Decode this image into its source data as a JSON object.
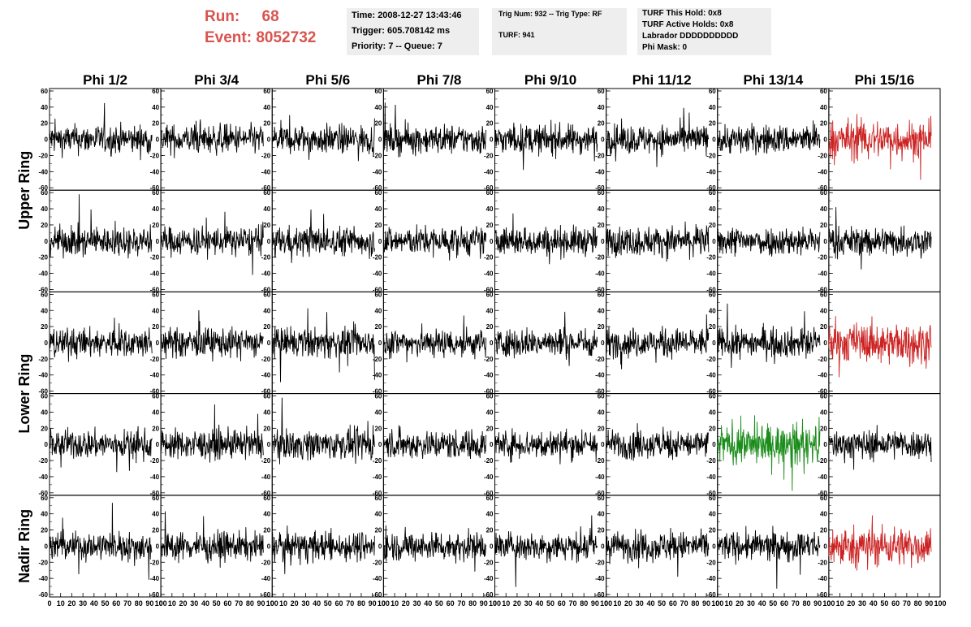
{
  "header": {
    "run_label": "Run:",
    "run_value": "68",
    "event_label": "Event:",
    "event_value": "8052732",
    "info1": [
      "Time: 2008-12-27 13:43:46",
      "Trigger: 605.708142 ms",
      "Priority: 7 -- Queue: 7"
    ],
    "info2": [
      "Trig Num: 932 -- Trig Type: RF",
      "TURF: 941"
    ],
    "info3": [
      "TURF This Hold: 0x8",
      "TURF Active Holds: 0x8",
      "Labrador DDDDDDDDDD",
      "Phi Mask: 0"
    ]
  },
  "colors": {
    "black": "#000000",
    "red": "#cc2222",
    "green": "#1a8c1a",
    "run_text": "#d9534f",
    "info_bg": "#eeeeee"
  },
  "chart_data": {
    "type": "line",
    "columns": [
      "Phi 1/2",
      "Phi 3/4",
      "Phi 5/6",
      "Phi 7/8",
      "Phi 9/10",
      "Phi 11/12",
      "Phi 13/14",
      "Phi 15/16"
    ],
    "ring_labels": [
      {
        "label": "Upper Ring",
        "rows": [
          0,
          1
        ]
      },
      {
        "label": "Lower Ring",
        "rows": [
          2,
          3
        ]
      },
      {
        "label": "Nadir Ring",
        "rows": [
          4
        ]
      }
    ],
    "rows": 5,
    "xlim": [
      0,
      100
    ],
    "ylim": [
      -60,
      60
    ],
    "x_ticks": [
      "0",
      "10",
      "20",
      "30",
      "40",
      "50",
      "60",
      "70",
      "80",
      "90",
      "100"
    ],
    "y_ticks": [
      "-60",
      "-40",
      "-20",
      "0",
      "20",
      "40",
      "60"
    ],
    "highlighted": [
      {
        "row": 0,
        "col": 7,
        "color": "red"
      },
      {
        "row": 2,
        "col": 7,
        "color": "red"
      },
      {
        "row": 3,
        "col": 6,
        "color": "green"
      },
      {
        "row": 4,
        "col": 7,
        "color": "red"
      }
    ],
    "waveform": {
      "samples": 260,
      "typical_amplitude": 15,
      "peak_amplitude": 50
    }
  }
}
